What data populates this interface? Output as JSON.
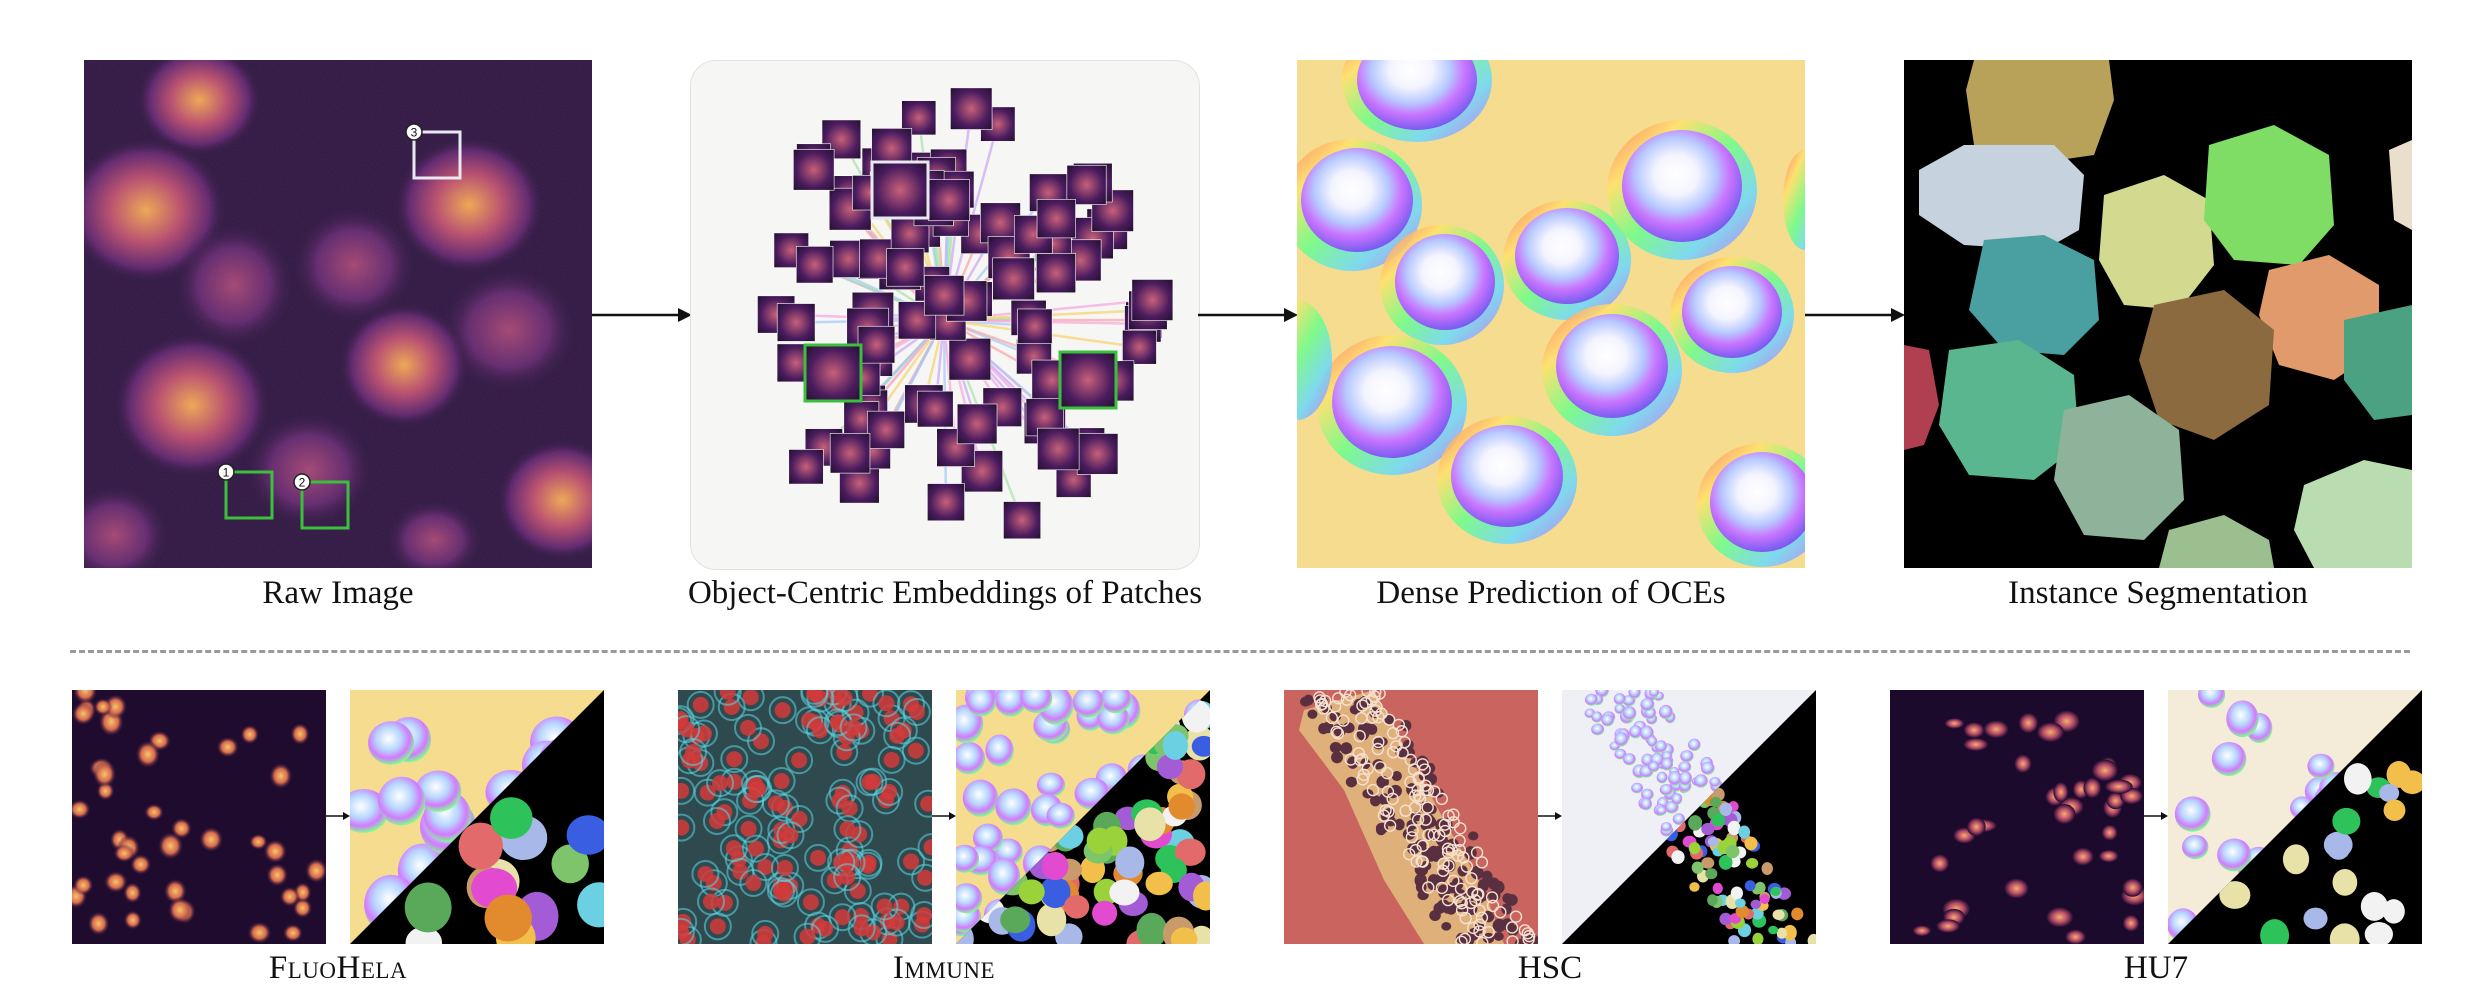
{
  "top_row": {
    "raw_image_label": "Raw Image",
    "embeddings_label": "Object-Centric Embeddings of Patches",
    "dense_label": "Dense Prediction of OCEs",
    "instance_label": "Instance Segmentation",
    "patch_markers": [
      "1",
      "2",
      "3"
    ]
  },
  "bottom_row": {
    "datasets": [
      {
        "label": "FluoHela"
      },
      {
        "label": "Immune"
      },
      {
        "label": "HSC"
      },
      {
        "label": "HU7"
      }
    ]
  },
  "colors": {
    "raw_bg": "#2a0f3d",
    "cell_glow": "#e89a55",
    "patch_box_green": "#3cbf3c",
    "patch_box_white": "#e8e8f0",
    "dense_bg": "#f6dc8e",
    "seg_bg": "#000000"
  }
}
